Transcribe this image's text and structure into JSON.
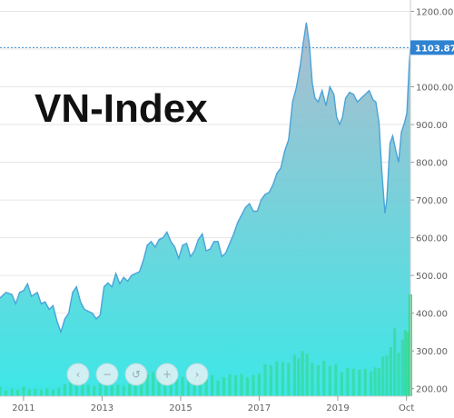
{
  "chart_data": {
    "type": "area",
    "title": "VN-Index",
    "ylim": [
      180,
      1230
    ],
    "yticks": [
      200,
      300,
      400,
      500,
      600,
      700,
      800,
      900,
      1000,
      1100,
      1200
    ],
    "ytick_labels": [
      "200.00",
      "300.00",
      "400.00",
      "500.00",
      "600.00",
      "700.00",
      "800.00",
      "900.00",
      "1000.00",
      "1100.00",
      "1200.00"
    ],
    "xlim": [
      2010.4,
      2020.85
    ],
    "xticks": [
      2011,
      2013,
      2015,
      2017,
      2019,
      2020.75
    ],
    "xtick_labels": [
      "2011",
      "2013",
      "2015",
      "2017",
      "2019",
      "Oct"
    ],
    "last_value": 1103.87,
    "last_value_label": "1103.87",
    "grid": true,
    "legend": "none",
    "colors": {
      "line": "#4aa3d8",
      "area_top": "#a9b9cc",
      "area_bottom": "#33e6e6",
      "volume": "#2ed16a",
      "last_line": "#3f8fd6",
      "last_label_bg": "#2f83d1"
    },
    "series": [
      {
        "values": [
          [
            2010.4,
            440
          ],
          [
            2010.55,
            455
          ],
          [
            2010.7,
            450
          ],
          [
            2010.8,
            425
          ],
          [
            2010.9,
            455
          ],
          [
            2011.0,
            460
          ],
          [
            2011.1,
            478
          ],
          [
            2011.2,
            445
          ],
          [
            2011.35,
            455
          ],
          [
            2011.45,
            425
          ],
          [
            2011.55,
            430
          ],
          [
            2011.65,
            410
          ],
          [
            2011.75,
            420
          ],
          [
            2011.85,
            380
          ],
          [
            2011.95,
            350
          ],
          [
            2012.05,
            385
          ],
          [
            2012.15,
            400
          ],
          [
            2012.25,
            455
          ],
          [
            2012.35,
            470
          ],
          [
            2012.45,
            430
          ],
          [
            2012.55,
            410
          ],
          [
            2012.65,
            405
          ],
          [
            2012.75,
            400
          ],
          [
            2012.85,
            385
          ],
          [
            2012.95,
            395
          ],
          [
            2013.05,
            470
          ],
          [
            2013.15,
            480
          ],
          [
            2013.25,
            470
          ],
          [
            2013.35,
            505
          ],
          [
            2013.45,
            478
          ],
          [
            2013.55,
            495
          ],
          [
            2013.65,
            485
          ],
          [
            2013.75,
            500
          ],
          [
            2013.85,
            505
          ],
          [
            2013.95,
            510
          ],
          [
            2014.05,
            540
          ],
          [
            2014.15,
            580
          ],
          [
            2014.25,
            590
          ],
          [
            2014.35,
            575
          ],
          [
            2014.45,
            595
          ],
          [
            2014.55,
            600
          ],
          [
            2014.65,
            615
          ],
          [
            2014.75,
            590
          ],
          [
            2014.85,
            575
          ],
          [
            2014.95,
            545
          ],
          [
            2015.05,
            580
          ],
          [
            2015.15,
            585
          ],
          [
            2015.25,
            550
          ],
          [
            2015.35,
            565
          ],
          [
            2015.45,
            595
          ],
          [
            2015.55,
            610
          ],
          [
            2015.65,
            565
          ],
          [
            2015.75,
            570
          ],
          [
            2015.85,
            590
          ],
          [
            2015.95,
            590
          ],
          [
            2016.05,
            550
          ],
          [
            2016.15,
            560
          ],
          [
            2016.25,
            585
          ],
          [
            2016.35,
            610
          ],
          [
            2016.45,
            640
          ],
          [
            2016.55,
            660
          ],
          [
            2016.65,
            680
          ],
          [
            2016.75,
            690
          ],
          [
            2016.85,
            670
          ],
          [
            2016.95,
            670
          ],
          [
            2017.05,
            700
          ],
          [
            2017.15,
            715
          ],
          [
            2017.25,
            720
          ],
          [
            2017.35,
            740
          ],
          [
            2017.45,
            770
          ],
          [
            2017.55,
            785
          ],
          [
            2017.65,
            830
          ],
          [
            2017.75,
            860
          ],
          [
            2017.85,
            960
          ],
          [
            2017.95,
            1000
          ],
          [
            2018.05,
            1060
          ],
          [
            2018.12,
            1115
          ],
          [
            2018.2,
            1170
          ],
          [
            2018.28,
            1110
          ],
          [
            2018.35,
            1010
          ],
          [
            2018.42,
            970
          ],
          [
            2018.5,
            960
          ],
          [
            2018.6,
            990
          ],
          [
            2018.7,
            950
          ],
          [
            2018.8,
            1000
          ],
          [
            2018.9,
            980
          ],
          [
            2018.97,
            920
          ],
          [
            2019.05,
            900
          ],
          [
            2019.12,
            920
          ],
          [
            2019.2,
            970
          ],
          [
            2019.3,
            985
          ],
          [
            2019.4,
            980
          ],
          [
            2019.5,
            960
          ],
          [
            2019.6,
            970
          ],
          [
            2019.7,
            980
          ],
          [
            2019.8,
            990
          ],
          [
            2019.9,
            965
          ],
          [
            2019.97,
            960
          ],
          [
            2020.05,
            905
          ],
          [
            2020.12,
            780
          ],
          [
            2020.2,
            665
          ],
          [
            2020.25,
            700
          ],
          [
            2020.33,
            850
          ],
          [
            2020.4,
            870
          ],
          [
            2020.48,
            830
          ],
          [
            2020.55,
            800
          ],
          [
            2020.62,
            880
          ],
          [
            2020.7,
            905
          ],
          [
            2020.76,
            930
          ],
          [
            2020.82,
            1060
          ],
          [
            2020.85,
            1103.87
          ]
        ]
      },
      {
        "values": [
          [
            2010.4,
            205
          ],
          [
            2010.55,
            195
          ],
          [
            2010.7,
            200
          ],
          [
            2010.85,
            197
          ],
          [
            2011.0,
            205
          ],
          [
            2011.15,
            198
          ],
          [
            2011.3,
            200
          ],
          [
            2011.45,
            197
          ],
          [
            2011.6,
            201
          ],
          [
            2011.75,
            198
          ],
          [
            2011.9,
            203
          ],
          [
            2012.05,
            212
          ],
          [
            2012.2,
            226
          ],
          [
            2012.35,
            222
          ],
          [
            2012.5,
            214
          ],
          [
            2012.65,
            210
          ],
          [
            2012.8,
            207
          ],
          [
            2012.95,
            214
          ],
          [
            2013.1,
            210
          ],
          [
            2013.25,
            209
          ],
          [
            2013.4,
            210
          ],
          [
            2013.55,
            207
          ],
          [
            2013.7,
            212
          ],
          [
            2013.85,
            213
          ],
          [
            2014.0,
            220
          ],
          [
            2014.15,
            238
          ],
          [
            2014.3,
            244
          ],
          [
            2014.45,
            236
          ],
          [
            2014.6,
            223
          ],
          [
            2014.75,
            238
          ],
          [
            2014.9,
            226
          ],
          [
            2015.05,
            231
          ],
          [
            2015.2,
            224
          ],
          [
            2015.35,
            230
          ],
          [
            2015.5,
            234
          ],
          [
            2015.65,
            225
          ],
          [
            2015.8,
            236
          ],
          [
            2015.95,
            222
          ],
          [
            2016.1,
            230
          ],
          [
            2016.25,
            238
          ],
          [
            2016.4,
            235
          ],
          [
            2016.55,
            239
          ],
          [
            2016.7,
            230
          ],
          [
            2016.85,
            236
          ],
          [
            2017.0,
            240
          ],
          [
            2017.15,
            265
          ],
          [
            2017.3,
            262
          ],
          [
            2017.45,
            272
          ],
          [
            2017.6,
            270
          ],
          [
            2017.75,
            268
          ],
          [
            2017.9,
            290
          ],
          [
            2018.0,
            280
          ],
          [
            2018.1,
            300
          ],
          [
            2018.22,
            292
          ],
          [
            2018.35,
            268
          ],
          [
            2018.5,
            262
          ],
          [
            2018.65,
            274
          ],
          [
            2018.8,
            260
          ],
          [
            2018.95,
            265
          ],
          [
            2019.1,
            244
          ],
          [
            2019.25,
            255
          ],
          [
            2019.4,
            253
          ],
          [
            2019.55,
            250
          ],
          [
            2019.7,
            253
          ],
          [
            2019.85,
            246
          ],
          [
            2019.95,
            256
          ],
          [
            2020.05,
            255
          ],
          [
            2020.15,
            285
          ],
          [
            2020.25,
            288
          ],
          [
            2020.35,
            310
          ],
          [
            2020.45,
            360
          ],
          [
            2020.55,
            295
          ],
          [
            2020.65,
            330
          ],
          [
            2020.72,
            355
          ],
          [
            2020.78,
            350
          ],
          [
            2020.85,
            450
          ]
        ]
      }
    ]
  }
}
